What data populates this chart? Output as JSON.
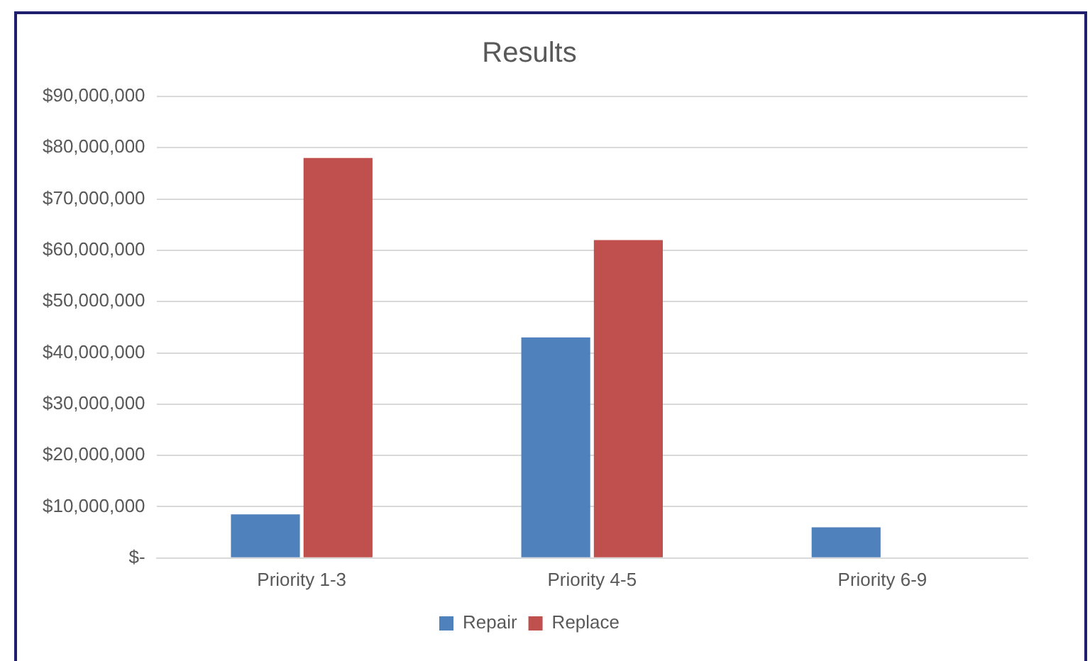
{
  "chart_data": {
    "type": "bar",
    "title": "Results",
    "categories": [
      "Priority 1-3",
      "Priority 4-5",
      "Priority 6-9"
    ],
    "series": [
      {
        "name": "Repair",
        "color": "#4f81bd",
        "values": [
          8500000,
          43000000,
          6000000
        ]
      },
      {
        "name": "Replace",
        "color": "#c0504d",
        "values": [
          78000000,
          62000000,
          0
        ]
      }
    ],
    "ylim": [
      0,
      90000000
    ],
    "yticks": [
      {
        "value": 0,
        "label": "$-"
      },
      {
        "value": 10000000,
        "label": "$10,000,000"
      },
      {
        "value": 20000000,
        "label": "$20,000,000"
      },
      {
        "value": 30000000,
        "label": "$30,000,000"
      },
      {
        "value": 40000000,
        "label": "$40,000,000"
      },
      {
        "value": 50000000,
        "label": "$50,000,000"
      },
      {
        "value": 60000000,
        "label": "$60,000,000"
      },
      {
        "value": 70000000,
        "label": "$70,000,000"
      },
      {
        "value": 80000000,
        "label": "$80,000,000"
      },
      {
        "value": 90000000,
        "label": "$90,000,000"
      }
    ],
    "grid": "y",
    "legend": "bottom"
  }
}
